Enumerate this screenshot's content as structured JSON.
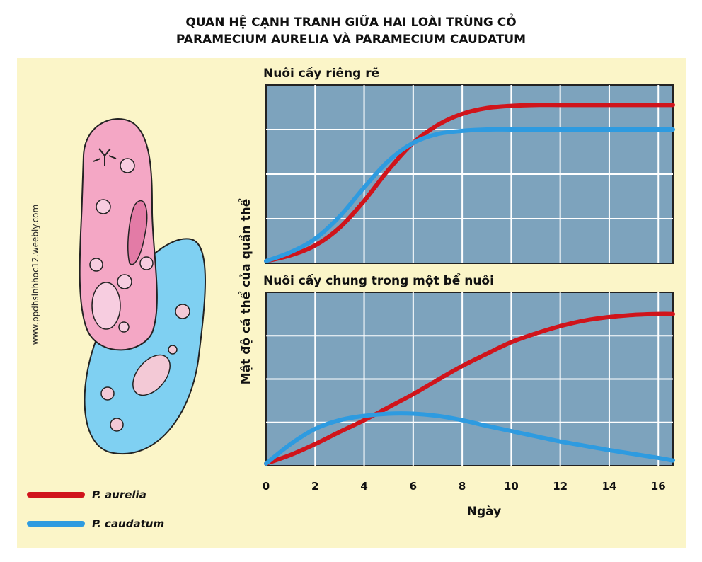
{
  "title_line1": "QUAN HỆ CẠNH TRANH GIỮA HAI LOÀI TRÙNG CỎ",
  "title_line2": "PARAMECIUM AURELIA VÀ PARAMECIUM CAUDATUM",
  "watermark": "www.ppdhsinhhoc12.weebly.com",
  "chart_data": [
    {
      "type": "line",
      "title": "Nuôi cấy riêng rẽ",
      "xlabel": "Ngày",
      "ylabel": "Mật độ cá thể của quần thể",
      "xlim": [
        0,
        16.6
      ],
      "ylim": [
        0,
        4
      ],
      "grid": true,
      "series": [
        {
          "name": "P. aurelia",
          "color": "#d0141b",
          "x": [
            0,
            1,
            2,
            3,
            4,
            5,
            6,
            7,
            8,
            9,
            10,
            11,
            12,
            13,
            14,
            15,
            16,
            16.6
          ],
          "y": [
            0.05,
            0.18,
            0.4,
            0.8,
            1.4,
            2.1,
            2.7,
            3.1,
            3.35,
            3.48,
            3.53,
            3.55,
            3.55,
            3.55,
            3.55,
            3.55,
            3.55,
            3.55
          ]
        },
        {
          "name": "P. caudatum",
          "color": "#2e9be0",
          "x": [
            0,
            1,
            2,
            3,
            4,
            5,
            6,
            7,
            8,
            9,
            10,
            11,
            12,
            13,
            14,
            15,
            16,
            16.6
          ],
          "y": [
            0.05,
            0.25,
            0.55,
            1.05,
            1.7,
            2.3,
            2.7,
            2.9,
            2.97,
            3.0,
            3.0,
            3.0,
            3.0,
            3.0,
            3.0,
            3.0,
            3.0,
            3.0
          ]
        }
      ]
    },
    {
      "type": "line",
      "title": "Nuôi cấy chung trong một bể nuôi",
      "xlabel": "Ngày",
      "ylabel": "Mật độ cá thể của quần thể",
      "xlim": [
        0,
        16.6
      ],
      "ylim": [
        0,
        4
      ],
      "grid": true,
      "x_ticks": [
        0,
        2,
        4,
        6,
        8,
        10,
        12,
        14,
        16
      ],
      "series": [
        {
          "name": "P. aurelia",
          "color": "#d0141b",
          "x": [
            0,
            1,
            2,
            3,
            4,
            5,
            6,
            7,
            8,
            9,
            10,
            11,
            12,
            13,
            14,
            15,
            16,
            16.6
          ],
          "y": [
            0.05,
            0.25,
            0.5,
            0.78,
            1.05,
            1.35,
            1.65,
            1.98,
            2.3,
            2.58,
            2.85,
            3.05,
            3.22,
            3.35,
            3.43,
            3.48,
            3.5,
            3.5
          ]
        },
        {
          "name": "P. caudatum",
          "color": "#2e9be0",
          "x": [
            0,
            1,
            2,
            3,
            4,
            5,
            6,
            7,
            8,
            9,
            10,
            11,
            12,
            13,
            14,
            15,
            16,
            16.6
          ],
          "y": [
            0.05,
            0.5,
            0.85,
            1.05,
            1.15,
            1.2,
            1.2,
            1.15,
            1.05,
            0.92,
            0.8,
            0.68,
            0.56,
            0.46,
            0.36,
            0.27,
            0.18,
            0.12
          ]
        }
      ]
    }
  ]
}
